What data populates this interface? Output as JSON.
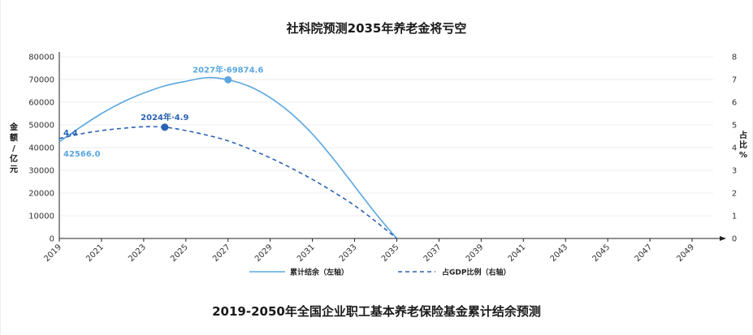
{
  "chart_data": {
    "type": "line",
    "title": "社科院预测2035年养老金将亏空",
    "caption": "2019-2050年全国企业职工基本养老保险基金累计结余预测",
    "x_ticks": [
      "2019",
      "2021",
      "2023",
      "2025",
      "2027",
      "2029",
      "2031",
      "2033",
      "2035",
      "2037",
      "2039",
      "2041",
      "2043",
      "2045",
      "2047",
      "2049"
    ],
    "xlim": [
      2019,
      2050
    ],
    "left_axis": {
      "label": "金额/亿元",
      "ylim": [
        0,
        80000
      ],
      "ticks": [
        0,
        10000,
        20000,
        30000,
        40000,
        50000,
        60000,
        70000,
        80000
      ]
    },
    "right_axis": {
      "label": "占比%",
      "ylim": [
        0,
        8
      ],
      "ticks": [
        0,
        1,
        2,
        3,
        4,
        5,
        6,
        7,
        8
      ]
    },
    "series": [
      {
        "name": "累计结余（左轴）",
        "axis": "left",
        "style": "solid",
        "color": "#5aa7e0",
        "x": [
          2019,
          2020,
          2021,
          2022,
          2023,
          2024,
          2025,
          2026,
          2027,
          2028,
          2029,
          2030,
          2031,
          2032,
          2033,
          2034,
          2035
        ],
        "values": [
          42566,
          49000,
          55000,
          60000,
          64000,
          67200,
          69200,
          70800,
          69874.6,
          67000,
          62000,
          55000,
          46000,
          35000,
          23000,
          11000,
          0
        ]
      },
      {
        "name": "占GDP比例（右轴）",
        "axis": "right",
        "style": "dashed",
        "color": "#2a62b5",
        "x": [
          2019,
          2020,
          2021,
          2022,
          2023,
          2024,
          2025,
          2026,
          2027,
          2028,
          2029,
          2030,
          2031,
          2032,
          2033,
          2034,
          2035
        ],
        "values": [
          4.4,
          4.6,
          4.75,
          4.85,
          4.92,
          4.9,
          4.75,
          4.55,
          4.3,
          3.95,
          3.55,
          3.1,
          2.6,
          2.05,
          1.45,
          0.75,
          0
        ]
      }
    ],
    "annotations": [
      {
        "text": "2027年·69874.6",
        "series": 0,
        "x": 2027,
        "y": 69874.6
      },
      {
        "text": "2024年·4.9",
        "series": 1,
        "x": 2024,
        "y": 4.9
      },
      {
        "text": "42566.0",
        "series": 0,
        "x": 2019,
        "y": 42566
      },
      {
        "text": "4.4",
        "series": 1,
        "x": 2019,
        "y": 4.4
      }
    ],
    "legend_position": "bottom-center",
    "grid": true
  }
}
